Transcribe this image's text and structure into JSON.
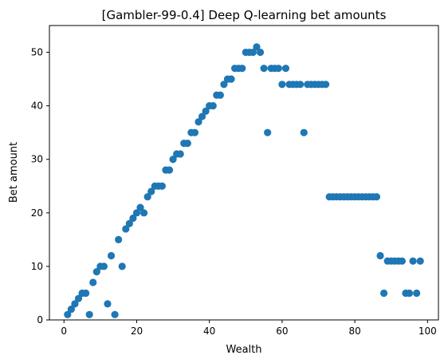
{
  "chart_data": {
    "type": "scatter",
    "title": "[Gambler-99-0.4] Deep Q-learning bet amounts",
    "xlabel": "Wealth",
    "ylabel": "Bet amount",
    "xlim": [
      -4,
      103
    ],
    "ylim": [
      0,
      55
    ],
    "xticks": [
      0,
      20,
      40,
      60,
      80,
      100
    ],
    "yticks": [
      0,
      10,
      20,
      30,
      40,
      50
    ],
    "grid": false,
    "marker_color": "#1f77b4",
    "points": [
      [
        1,
        1
      ],
      [
        2,
        2
      ],
      [
        3,
        3
      ],
      [
        4,
        4
      ],
      [
        5,
        5
      ],
      [
        6,
        5
      ],
      [
        7,
        1
      ],
      [
        8,
        7
      ],
      [
        9,
        9
      ],
      [
        10,
        10
      ],
      [
        11,
        10
      ],
      [
        12,
        3
      ],
      [
        13,
        12
      ],
      [
        14,
        1
      ],
      [
        15,
        15
      ],
      [
        16,
        10
      ],
      [
        17,
        17
      ],
      [
        18,
        18
      ],
      [
        19,
        19
      ],
      [
        20,
        20
      ],
      [
        21,
        21
      ],
      [
        22,
        20
      ],
      [
        23,
        23
      ],
      [
        24,
        24
      ],
      [
        25,
        25
      ],
      [
        26,
        25
      ],
      [
        27,
        25
      ],
      [
        28,
        28
      ],
      [
        29,
        28
      ],
      [
        30,
        30
      ],
      [
        31,
        31
      ],
      [
        32,
        31
      ],
      [
        33,
        33
      ],
      [
        34,
        33
      ],
      [
        35,
        35
      ],
      [
        36,
        35
      ],
      [
        37,
        37
      ],
      [
        38,
        38
      ],
      [
        39,
        39
      ],
      [
        40,
        40
      ],
      [
        41,
        40
      ],
      [
        42,
        42
      ],
      [
        43,
        42
      ],
      [
        44,
        44
      ],
      [
        45,
        45
      ],
      [
        46,
        45
      ],
      [
        47,
        47
      ],
      [
        48,
        47
      ],
      [
        49,
        47
      ],
      [
        50,
        50
      ],
      [
        51,
        50
      ],
      [
        52,
        50
      ],
      [
        53,
        51
      ],
      [
        54,
        50
      ],
      [
        55,
        47
      ],
      [
        56,
        35
      ],
      [
        57,
        47
      ],
      [
        58,
        47
      ],
      [
        59,
        47
      ],
      [
        60,
        44
      ],
      [
        61,
        47
      ],
      [
        62,
        44
      ],
      [
        63,
        44
      ],
      [
        64,
        44
      ],
      [
        65,
        44
      ],
      [
        66,
        35
      ],
      [
        67,
        44
      ],
      [
        68,
        44
      ],
      [
        69,
        44
      ],
      [
        70,
        44
      ],
      [
        71,
        44
      ],
      [
        72,
        44
      ],
      [
        73,
        23
      ],
      [
        74,
        23
      ],
      [
        75,
        23
      ],
      [
        76,
        23
      ],
      [
        77,
        23
      ],
      [
        78,
        23
      ],
      [
        79,
        23
      ],
      [
        80,
        23
      ],
      [
        81,
        23
      ],
      [
        82,
        23
      ],
      [
        83,
        23
      ],
      [
        84,
        23
      ],
      [
        85,
        23
      ],
      [
        86,
        23
      ],
      [
        87,
        12
      ],
      [
        88,
        5
      ],
      [
        89,
        11
      ],
      [
        90,
        11
      ],
      [
        91,
        11
      ],
      [
        92,
        11
      ],
      [
        93,
        11
      ],
      [
        94,
        5
      ],
      [
        95,
        5
      ],
      [
        96,
        11
      ],
      [
        97,
        5
      ],
      [
        98,
        11
      ]
    ]
  }
}
